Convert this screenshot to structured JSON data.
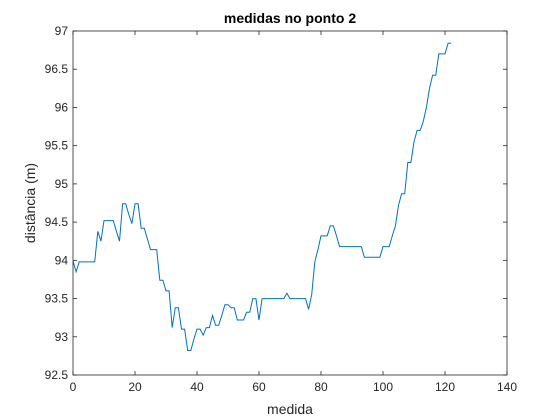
{
  "chart_data": {
    "type": "line",
    "title": "medidas no ponto 2",
    "xlabel": "medida",
    "ylabel": "distância (m)",
    "xlim": [
      0,
      140
    ],
    "ylim": [
      92.5,
      97
    ],
    "xticks": [
      0,
      20,
      40,
      60,
      80,
      100,
      120,
      140
    ],
    "xtick_labels": [
      "0",
      "20",
      "40",
      "60",
      "80",
      "100",
      "120",
      "140"
    ],
    "yticks": [
      92.5,
      93,
      93.5,
      94,
      94.5,
      95,
      95.5,
      96,
      96.5,
      97
    ],
    "ytick_labels": [
      "92.5",
      "93",
      "93.5",
      "94",
      "94.5",
      "95",
      "95.5",
      "96",
      "96.5",
      "97"
    ],
    "grid": false,
    "line_color": "#0072bd",
    "series": [
      {
        "x": [
          0,
          1,
          2,
          3,
          4,
          5,
          6,
          7,
          8,
          9,
          10,
          11,
          12,
          13,
          14,
          15,
          16,
          17,
          18,
          19,
          20,
          21,
          22,
          23,
          24,
          25,
          26,
          27,
          28,
          29,
          30,
          31,
          32,
          33,
          34,
          35,
          36,
          37,
          38,
          39,
          40,
          41,
          42,
          43,
          44,
          45,
          46,
          47,
          48,
          49,
          50,
          51,
          52,
          53,
          54,
          55,
          56,
          57,
          58,
          59,
          60,
          61,
          62,
          63,
          64,
          65,
          66,
          67,
          68,
          69,
          70,
          71,
          72,
          73,
          74,
          75,
          76,
          77,
          78,
          79,
          80,
          81,
          82,
          83,
          84,
          85,
          86,
          87,
          88,
          89,
          90,
          91,
          92,
          93,
          94,
          95,
          96,
          97,
          98,
          99,
          100,
          101,
          102,
          103,
          104,
          105,
          106,
          107,
          108,
          109,
          110,
          111,
          112,
          113,
          114,
          115,
          116,
          117,
          118,
          119,
          120,
          121,
          122
        ],
        "values": [
          93.99,
          93.85,
          93.98,
          93.98,
          93.98,
          93.98,
          93.98,
          93.98,
          94.38,
          94.25,
          94.52,
          94.52,
          94.52,
          94.52,
          94.38,
          94.25,
          94.74,
          94.74,
          94.6,
          94.48,
          94.74,
          94.74,
          94.42,
          94.42,
          94.28,
          94.14,
          94.14,
          94.14,
          93.74,
          93.74,
          93.6,
          93.6,
          93.12,
          93.38,
          93.38,
          93.1,
          93.1,
          92.82,
          92.82,
          92.97,
          93.1,
          93.1,
          93.02,
          93.12,
          93.12,
          93.28,
          93.15,
          93.15,
          93.28,
          93.42,
          93.42,
          93.38,
          93.38,
          93.22,
          93.22,
          93.22,
          93.32,
          93.32,
          93.5,
          93.5,
          93.22,
          93.5,
          93.5,
          93.5,
          93.5,
          93.5,
          93.5,
          93.5,
          93.5,
          93.57,
          93.5,
          93.5,
          93.5,
          93.5,
          93.5,
          93.5,
          93.36,
          93.55,
          93.98,
          94.14,
          94.32,
          94.32,
          94.32,
          94.45,
          94.45,
          94.32,
          94.18,
          94.18,
          94.18,
          94.18,
          94.18,
          94.18,
          94.18,
          94.18,
          94.04,
          94.04,
          94.04,
          94.04,
          94.04,
          94.04,
          94.18,
          94.18,
          94.18,
          94.32,
          94.45,
          94.72,
          94.87,
          94.87,
          95.28,
          95.28,
          95.55,
          95.7,
          95.7,
          95.82,
          96.0,
          96.25,
          96.42,
          96.42,
          96.7,
          96.7,
          96.7,
          96.84,
          96.84
        ]
      }
    ]
  }
}
